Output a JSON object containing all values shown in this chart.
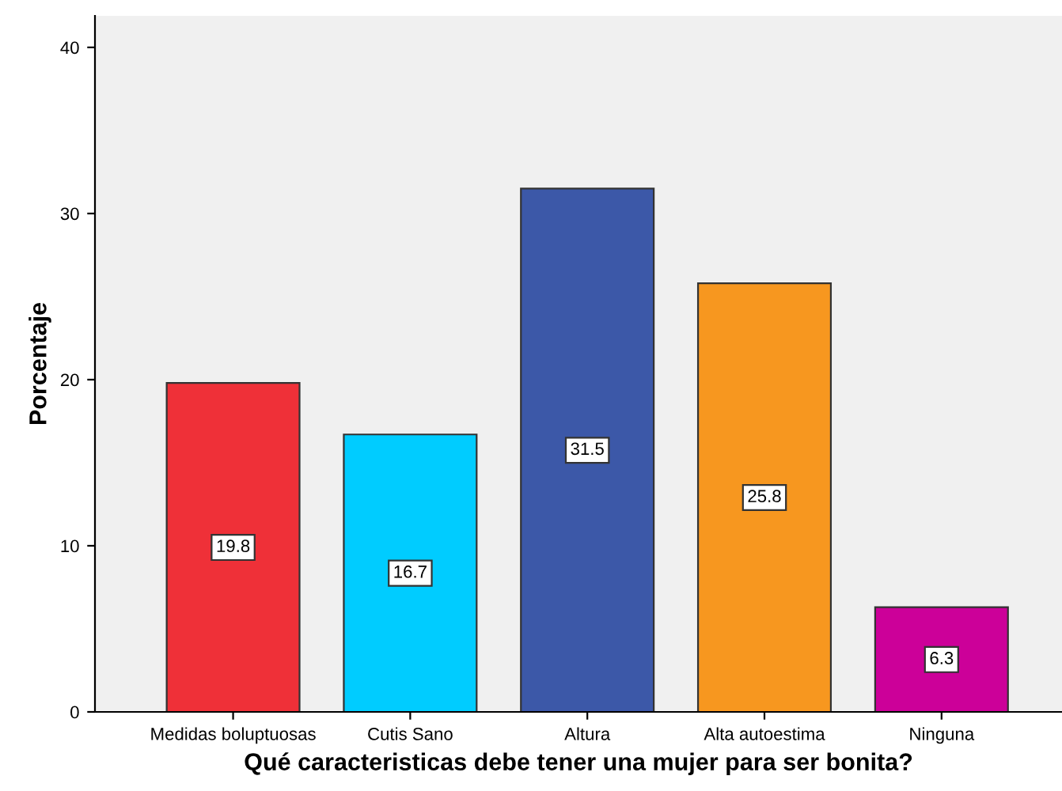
{
  "chart_data": {
    "type": "bar",
    "xlabel": "Qué caracteristicas debe tener una mujer para ser bonita?",
    "ylabel": "Porcentaje",
    "categories": [
      "Medidas boluptuosas",
      "Cutis Sano",
      "Altura",
      "Alta autoestima",
      "Ninguna"
    ],
    "values": [
      19.8,
      16.7,
      31.5,
      25.8,
      6.3
    ],
    "colors": [
      "#ef3038",
      "#00ccff",
      "#3c58a8",
      "#f7971f",
      "#cc0099"
    ],
    "ylim": [
      0,
      41.9
    ],
    "yticks": [
      0,
      10,
      20,
      30,
      40
    ],
    "grid": false,
    "data_labels": true
  }
}
